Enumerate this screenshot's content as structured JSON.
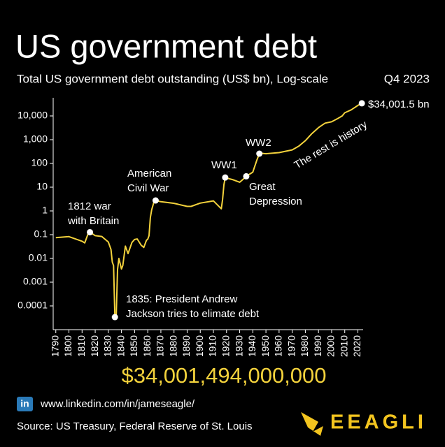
{
  "chart_data": {
    "type": "line",
    "title": "US government debt",
    "subtitle": "Total US government debt outstanding (US$ bn), Log-scale",
    "period": "Q4 2023",
    "log_scale": true,
    "color": "#f3d23c",
    "x": [
      1790,
      1800,
      1810,
      1812,
      1815,
      1816,
      1820,
      1825,
      1830,
      1832,
      1833,
      1834,
      1835,
      1836,
      1837,
      1838,
      1840,
      1841,
      1843,
      1845,
      1848,
      1850,
      1852,
      1855,
      1857,
      1859,
      1860,
      1861,
      1862,
      1863,
      1865,
      1866,
      1870,
      1880,
      1890,
      1893,
      1900,
      1910,
      1916,
      1917,
      1918,
      1919,
      1920,
      1925,
      1930,
      1933,
      1935,
      1940,
      1943,
      1945,
      1946,
      1950,
      1960,
      1970,
      1975,
      1980,
      1985,
      1990,
      1995,
      2000,
      2005,
      2008,
      2010,
      2015,
      2020,
      2023
    ],
    "values": [
      0.075,
      0.083,
      0.053,
      0.045,
      0.127,
      0.127,
      0.091,
      0.084,
      0.049,
      0.024,
      0.007,
      0.005,
      3.38e-05,
      3.8e-05,
      0.0034,
      0.01,
      0.0036,
      0.005,
      0.033,
      0.016,
      0.047,
      0.063,
      0.066,
      0.036,
      0.029,
      0.058,
      0.065,
      0.091,
      0.524,
      1.12,
      2.68,
      2.76,
      2.44,
      2.09,
      1.55,
      1.55,
      2.14,
      2.65,
      1.23,
      2.98,
      12.5,
      25.5,
      24.3,
      20.5,
      16.2,
      22.5,
      28.7,
      43,
      136,
      258,
      269,
      257,
      286,
      371,
      533,
      908,
      1817,
      3233,
      4974,
      5674,
      7933,
      10025,
      13562,
      18151,
      27748,
      34001.5
    ],
    "xlim": [
      1788,
      2024
    ],
    "ylim": [
      1e-05,
      100000
    ],
    "xticks": [
      1790,
      1800,
      1810,
      1820,
      1830,
      1840,
      1850,
      1860,
      1870,
      1880,
      1890,
      1900,
      1910,
      1920,
      1930,
      1940,
      1950,
      1960,
      1970,
      1980,
      1990,
      2000,
      2010,
      2020
    ],
    "yticks": [
      {
        "value": 10000,
        "label": "10,000"
      },
      {
        "value": 1000,
        "label": "1,000"
      },
      100,
      10,
      1,
      0.1,
      0.01,
      0.001,
      0.0001
    ],
    "annotations": [
      {
        "x": 1816,
        "y": 0.127,
        "lines": [
          "1812 war",
          "with Britain"
        ]
      },
      {
        "x": 1835,
        "y": 3.38e-05,
        "lines": [
          "1835: President Andrew",
          "Jackson tries to elimate debt"
        ]
      },
      {
        "x": 1866,
        "y": 2.76,
        "lines": [
          "American",
          "Civil War"
        ]
      },
      {
        "x": 1919,
        "y": 25.5,
        "lines": [
          "WW1"
        ]
      },
      {
        "x": 1935,
        "y": 28.7,
        "lines": [
          "Great",
          "Depression"
        ]
      },
      {
        "x": 1945,
        "y": 258,
        "lines": [
          "WW2"
        ]
      },
      {
        "x": 2023,
        "y": 34001.5,
        "lines": [
          "$34,001.5 bn"
        ]
      },
      {
        "lines": [
          "The rest is history"
        ]
      }
    ],
    "headline": {
      "value": 34001494000000,
      "label": "$34,001,494,000,000"
    }
  },
  "footer": {
    "linkedin": "www.linkedin.com/in/jameseagle/",
    "source": "Source: US Treasury, Federal Reserve of St. Louis",
    "brand": "EEAGLI"
  }
}
